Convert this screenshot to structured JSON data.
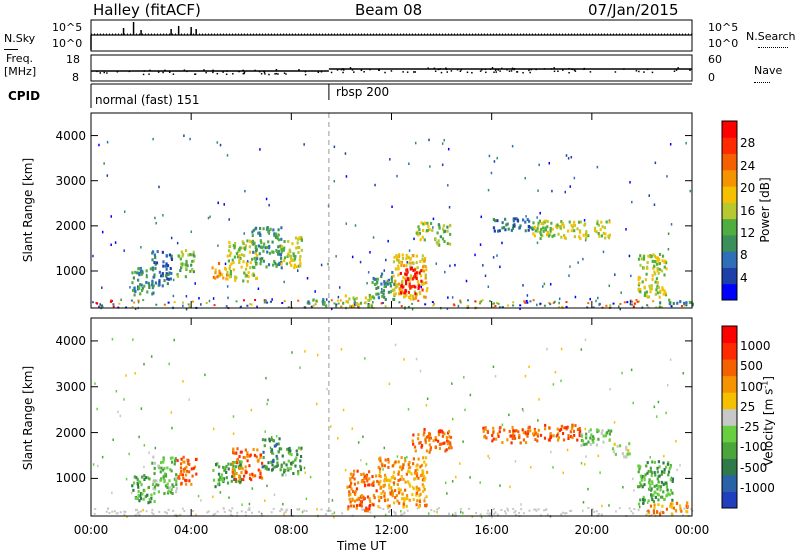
{
  "header": {
    "station": "Halley (fitACF)",
    "beam": "Beam 08",
    "date": "07/Jan/2015"
  },
  "labels": {
    "nsky": "N.Sky",
    "nsearch": "N.Search",
    "freq_top": "Freq.",
    "freq_unit": "[MHz]",
    "nave": "Nave",
    "cpid": "CPID",
    "nsky_ticks": [
      "10^5",
      "10^0"
    ],
    "nsearch_ticks": [
      "10^5",
      "10^0"
    ],
    "freq_ticks": [
      "18",
      "8"
    ],
    "nave_ticks": [
      "60",
      "0"
    ],
    "cpid_segments": [
      {
        "name": "normal (fast) 151",
        "start_hour": 0
      },
      {
        "name": "rbsp 200",
        "start_hour": 9.5
      }
    ]
  },
  "chart_data": [
    {
      "type": "heatmap",
      "name": "power",
      "ylabel": "Slant Range [km]",
      "xlabel": "",
      "xlim": [
        0,
        24
      ],
      "ylim": [
        180,
        4500
      ],
      "yticks": [
        1000,
        2000,
        3000,
        4000
      ],
      "colorbar": {
        "label": "Power [dB]",
        "ticks": [
          "28",
          "24",
          "20",
          "16",
          "12",
          "8",
          "4"
        ],
        "colors": [
          "#0000ff",
          "#1d3fa8",
          "#2f6fb8",
          "#3b8f5a",
          "#4fae3f",
          "#b8c930",
          "#f5c000",
          "#f59300",
          "#f56000",
          "#ff2a00",
          "#ff0000"
        ]
      },
      "regions": [
        {
          "t": [
            1.6,
            2.5
          ],
          "r": [
            500,
            1100
          ],
          "level": 3
        },
        {
          "t": [
            2.4,
            3.2
          ],
          "r": [
            700,
            1500
          ],
          "level": 2
        },
        {
          "t": [
            3.4,
            4.1
          ],
          "r": [
            900,
            1500
          ],
          "level": 4
        },
        {
          "t": [
            4.8,
            5.4
          ],
          "r": [
            850,
            1200
          ],
          "level": 7
        },
        {
          "t": [
            5.4,
            6.6
          ],
          "r": [
            800,
            1700
          ],
          "level": 5
        },
        {
          "t": [
            6.4,
            7.6
          ],
          "r": [
            1100,
            2000
          ],
          "level": 3
        },
        {
          "t": [
            7.5,
            8.4
          ],
          "r": [
            1100,
            1800
          ],
          "level": 5
        },
        {
          "t": [
            8.6,
            9.4
          ],
          "r": [
            250,
            400
          ],
          "level": 3
        },
        {
          "t": [
            10.0,
            11.2
          ],
          "r": [
            250,
            500
          ],
          "level": 5
        },
        {
          "t": [
            11.2,
            12.1
          ],
          "r": [
            400,
            1000
          ],
          "level": 3
        },
        {
          "t": [
            12.0,
            13.4
          ],
          "r": [
            400,
            1400
          ],
          "level": 6
        },
        {
          "t": [
            12.3,
            13.2
          ],
          "r": [
            500,
            1100
          ],
          "level": 10
        },
        {
          "t": [
            12.9,
            13.6
          ],
          "r": [
            1700,
            2100
          ],
          "level": 5
        },
        {
          "t": [
            13.7,
            14.3
          ],
          "r": [
            1600,
            2100
          ],
          "level": 4
        },
        {
          "t": [
            16.0,
            17.6
          ],
          "r": [
            1900,
            2200
          ],
          "level": 2
        },
        {
          "t": [
            17.6,
            20.7
          ],
          "r": [
            1750,
            2150
          ],
          "level": 5
        },
        {
          "t": [
            21.8,
            23.0
          ],
          "r": [
            450,
            1400
          ],
          "level": 5
        },
        {
          "t": [
            23.0,
            24.0
          ],
          "r": [
            250,
            400
          ],
          "level": 3
        }
      ]
    },
    {
      "type": "heatmap",
      "name": "velocity",
      "ylabel": "Slant Range [km]",
      "xlabel": "Time UT",
      "xlim": [
        0,
        24
      ],
      "ylim": [
        180,
        4500
      ],
      "yticks": [
        1000,
        2000,
        3000,
        4000
      ],
      "xticks": [
        "00:00",
        "04:00",
        "08:00",
        "12:00",
        "16:00",
        "20:00",
        "00:00"
      ],
      "colorbar": {
        "label": "Velocity [m s",
        "label_sup": "-1",
        "label_end": "]",
        "ticks": [
          "1000",
          "500",
          "100",
          "25",
          "-25",
          "-100",
          "-500",
          "-1000"
        ],
        "colors": [
          "#1f3fbf",
          "#2a62a8",
          "#2e7a4a",
          "#4aa53a",
          "#68d040",
          "#c8c8c8",
          "#f5c000",
          "#f59300",
          "#f56000",
          "#ff2a00",
          "#ff0000"
        ]
      },
      "regions": [
        {
          "t": [
            1.6,
            2.5
          ],
          "r": [
            500,
            1100
          ],
          "level": 3
        },
        {
          "t": [
            2.4,
            3.4
          ],
          "r": [
            700,
            1500
          ],
          "level": 4
        },
        {
          "t": [
            3.4,
            4.2
          ],
          "r": [
            900,
            1500
          ],
          "level": 8
        },
        {
          "t": [
            4.8,
            6.0
          ],
          "r": [
            850,
            1400
          ],
          "level": 3
        },
        {
          "t": [
            5.6,
            6.8
          ],
          "r": [
            1000,
            1700
          ],
          "level": 8
        },
        {
          "t": [
            6.8,
            7.6
          ],
          "r": [
            1200,
            1900
          ],
          "level": 2
        },
        {
          "t": [
            7.6,
            8.4
          ],
          "r": [
            1100,
            1700
          ],
          "level": 3
        },
        {
          "t": [
            10.2,
            11.4
          ],
          "r": [
            300,
            1200
          ],
          "level": 8
        },
        {
          "t": [
            11.4,
            13.4
          ],
          "r": [
            400,
            1500
          ],
          "level": 7
        },
        {
          "t": [
            12.8,
            14.4
          ],
          "r": [
            1600,
            2100
          ],
          "level": 8
        },
        {
          "t": [
            15.6,
            17.8
          ],
          "r": [
            1800,
            2150
          ],
          "level": 8
        },
        {
          "t": [
            17.8,
            19.5
          ],
          "r": [
            1850,
            2200
          ],
          "level": 8
        },
        {
          "t": [
            19.5,
            20.8
          ],
          "r": [
            1750,
            2100
          ],
          "level": 4
        },
        {
          "t": [
            20.8,
            21.5
          ],
          "r": [
            1500,
            1800
          ],
          "level": 5
        },
        {
          "t": [
            21.8,
            23.2
          ],
          "r": [
            450,
            1400
          ],
          "level": 3
        },
        {
          "t": [
            22.2,
            23.8
          ],
          "r": [
            250,
            500
          ],
          "level": 7
        }
      ]
    }
  ]
}
